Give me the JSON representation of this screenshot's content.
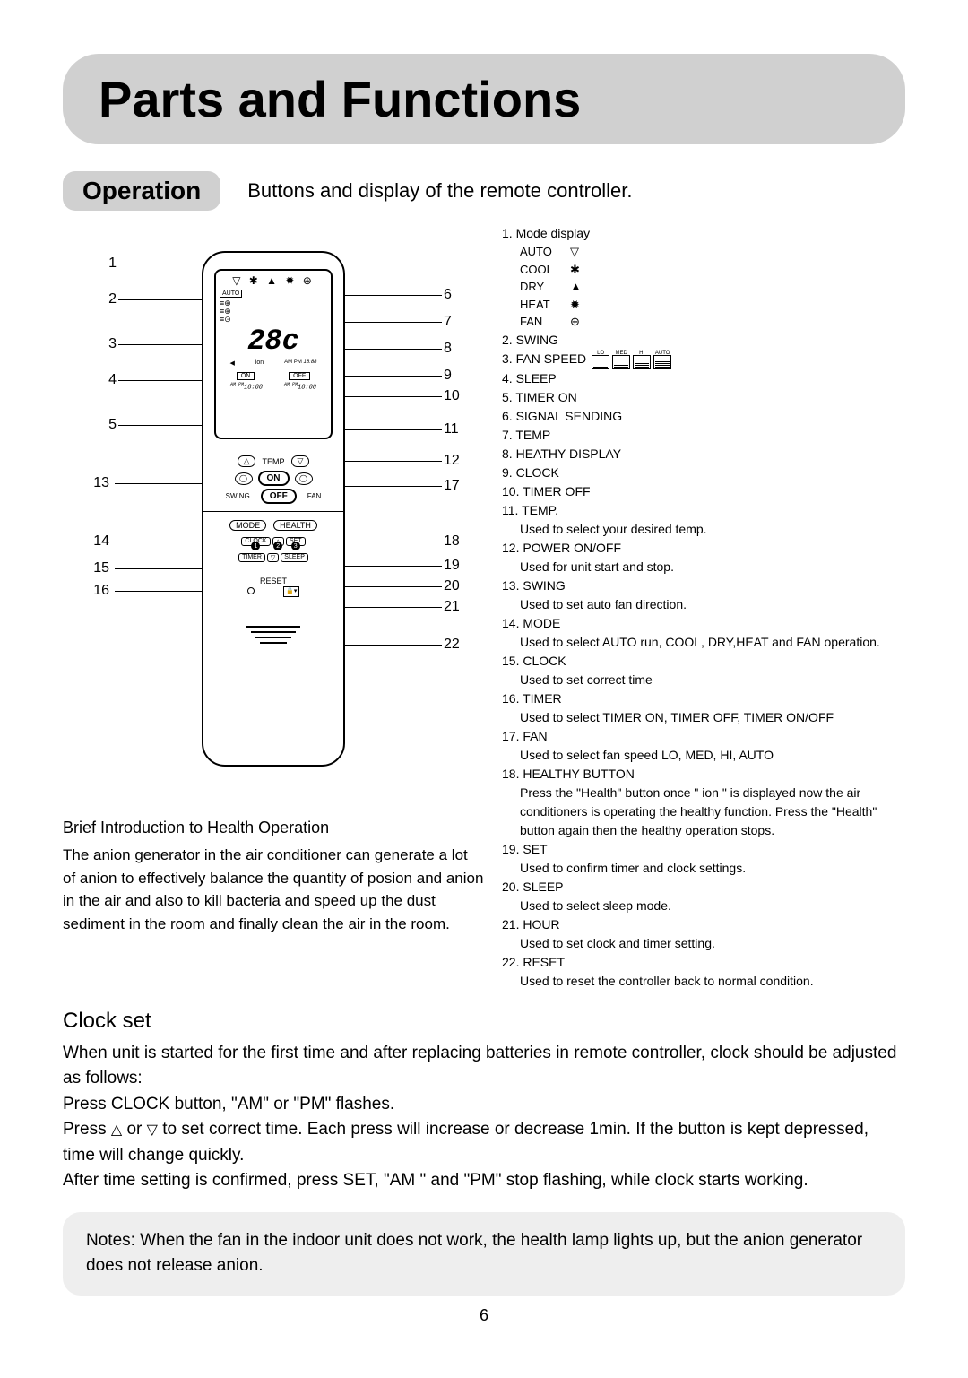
{
  "title": "Parts and Functions",
  "operation": {
    "badge": "Operation",
    "desc": "Buttons and display of the remote controller."
  },
  "callouts_left": [
    "1",
    "2",
    "3",
    "4",
    "5",
    "13",
    "14",
    "15",
    "16"
  ],
  "callouts_right": [
    "6",
    "7",
    "8",
    "9",
    "10",
    "11",
    "12",
    "17",
    "18",
    "19",
    "20",
    "21",
    "22"
  ],
  "remote": {
    "screen_icons": "▽ ✱ ▲ ✹ ⊕",
    "auto_label": "AUTO",
    "temp_display": "28c",
    "ion_label": "ion",
    "ampm": "AM PM",
    "clock_digits": "18:88",
    "on": "ON",
    "off": "OFF",
    "temp_btn": "TEMP",
    "up": "△",
    "down": "▽",
    "on_btn": "ON",
    "off_btn": "OFF",
    "swing": "SWING",
    "fan": "FAN",
    "mode": "MODE",
    "health": "HEALTH",
    "clock_b": "CLOCK",
    "set_b": "SET",
    "timer_b": "TIMER",
    "sleep_b": "SLEEP",
    "n1": "1",
    "n2": "2",
    "n3": "3",
    "reset": "RESET"
  },
  "legend": [
    {
      "num": "1.",
      "label": "Mode display",
      "modes": [
        {
          "t": "AUTO",
          "sym": "▽"
        },
        {
          "t": "COOL",
          "sym": "✱"
        },
        {
          "t": "DRY",
          "sym": "▲"
        },
        {
          "t": "HEAT",
          "sym": "✹"
        },
        {
          "t": "FAN",
          "sym": "⊕"
        }
      ]
    },
    {
      "num": "2.",
      "label": "SWING"
    },
    {
      "num": "3.",
      "label": "FAN SPEED",
      "fanspeed": [
        "LO",
        "MED",
        "HI",
        "AUTO"
      ]
    },
    {
      "num": "4.",
      "label": "SLEEP"
    },
    {
      "num": "5.",
      "label": "TIMER ON"
    },
    {
      "num": "6.",
      "label": "SIGNAL SENDING"
    },
    {
      "num": "7.",
      "label": "TEMP"
    },
    {
      "num": "8.",
      "label": "HEATHY DISPLAY"
    },
    {
      "num": "9.",
      "label": "CLOCK"
    },
    {
      "num": "10.",
      "label": "TIMER OFF"
    },
    {
      "num": "11.",
      "label": "TEMP.",
      "desc": "Used to select your desired temp."
    },
    {
      "num": "12.",
      "label": "POWER ON/OFF",
      "desc": "Used for unit start and stop."
    },
    {
      "num": "13.",
      "label": "SWING",
      "desc": "Used to set auto fan direction."
    },
    {
      "num": "14.",
      "label": "MODE",
      "desc": "Used to select AUTO run, COOL, DRY,HEAT and FAN operation."
    },
    {
      "num": "15.",
      "label": "CLOCK",
      "desc": "Used to set correct time"
    },
    {
      "num": "16.",
      "label": "TIMER",
      "desc": "Used to select TIMER ON, TIMER OFF, TIMER ON/OFF"
    },
    {
      "num": "17.",
      "label": "FAN",
      "desc": "Used to select fan speed LO, MED, HI, AUTO"
    },
    {
      "num": "18.",
      "label": "HEALTHY BUTTON",
      "desc": "Press the \"Health\" button once \" ion \" is displayed now the air conditioners is operating the healthy function. Press the \"Health\" button again then the healthy operation stops."
    },
    {
      "num": "19.",
      "label": "SET",
      "desc": "Used to confirm timer and clock settings."
    },
    {
      "num": "20.",
      "label": "SLEEP",
      "desc": "Used to select sleep mode."
    },
    {
      "num": "21.",
      "label": "HOUR",
      "desc": "Used to set clock and timer setting."
    },
    {
      "num": "22.",
      "label": "RESET",
      "desc": "Used to reset the controller back to normal condition."
    }
  ],
  "intro": {
    "title": "Brief Introduction to Health Operation",
    "body": "The anion generator in the air conditioner can generate a lot of anion to effectively balance the quantity of posion and anion in the air and also to kill bacteria and speed up the dust sediment in the room and finally clean the air in the room."
  },
  "clockset": {
    "title": "Clock set",
    "p1": "When unit is started for the first time and after replacing batteries in remote controller, clock should be adjusted as follows:",
    "p2": "Press CLOCK button, \"AM\" or \"PM\" flashes.",
    "p3a": "Press ",
    "p3b": " or ",
    "p3c": " to set correct time. Each press will increase or decrease 1min. If the button is kept depressed, time will change quickly.",
    "p4": "After time setting is confirmed, press SET, \"AM \" and \"PM\" stop flashing, while clock starts working."
  },
  "notes": "Notes: When the fan in the indoor unit does not work, the health lamp lights up, but the anion generator does not release anion.",
  "page_number": "6"
}
